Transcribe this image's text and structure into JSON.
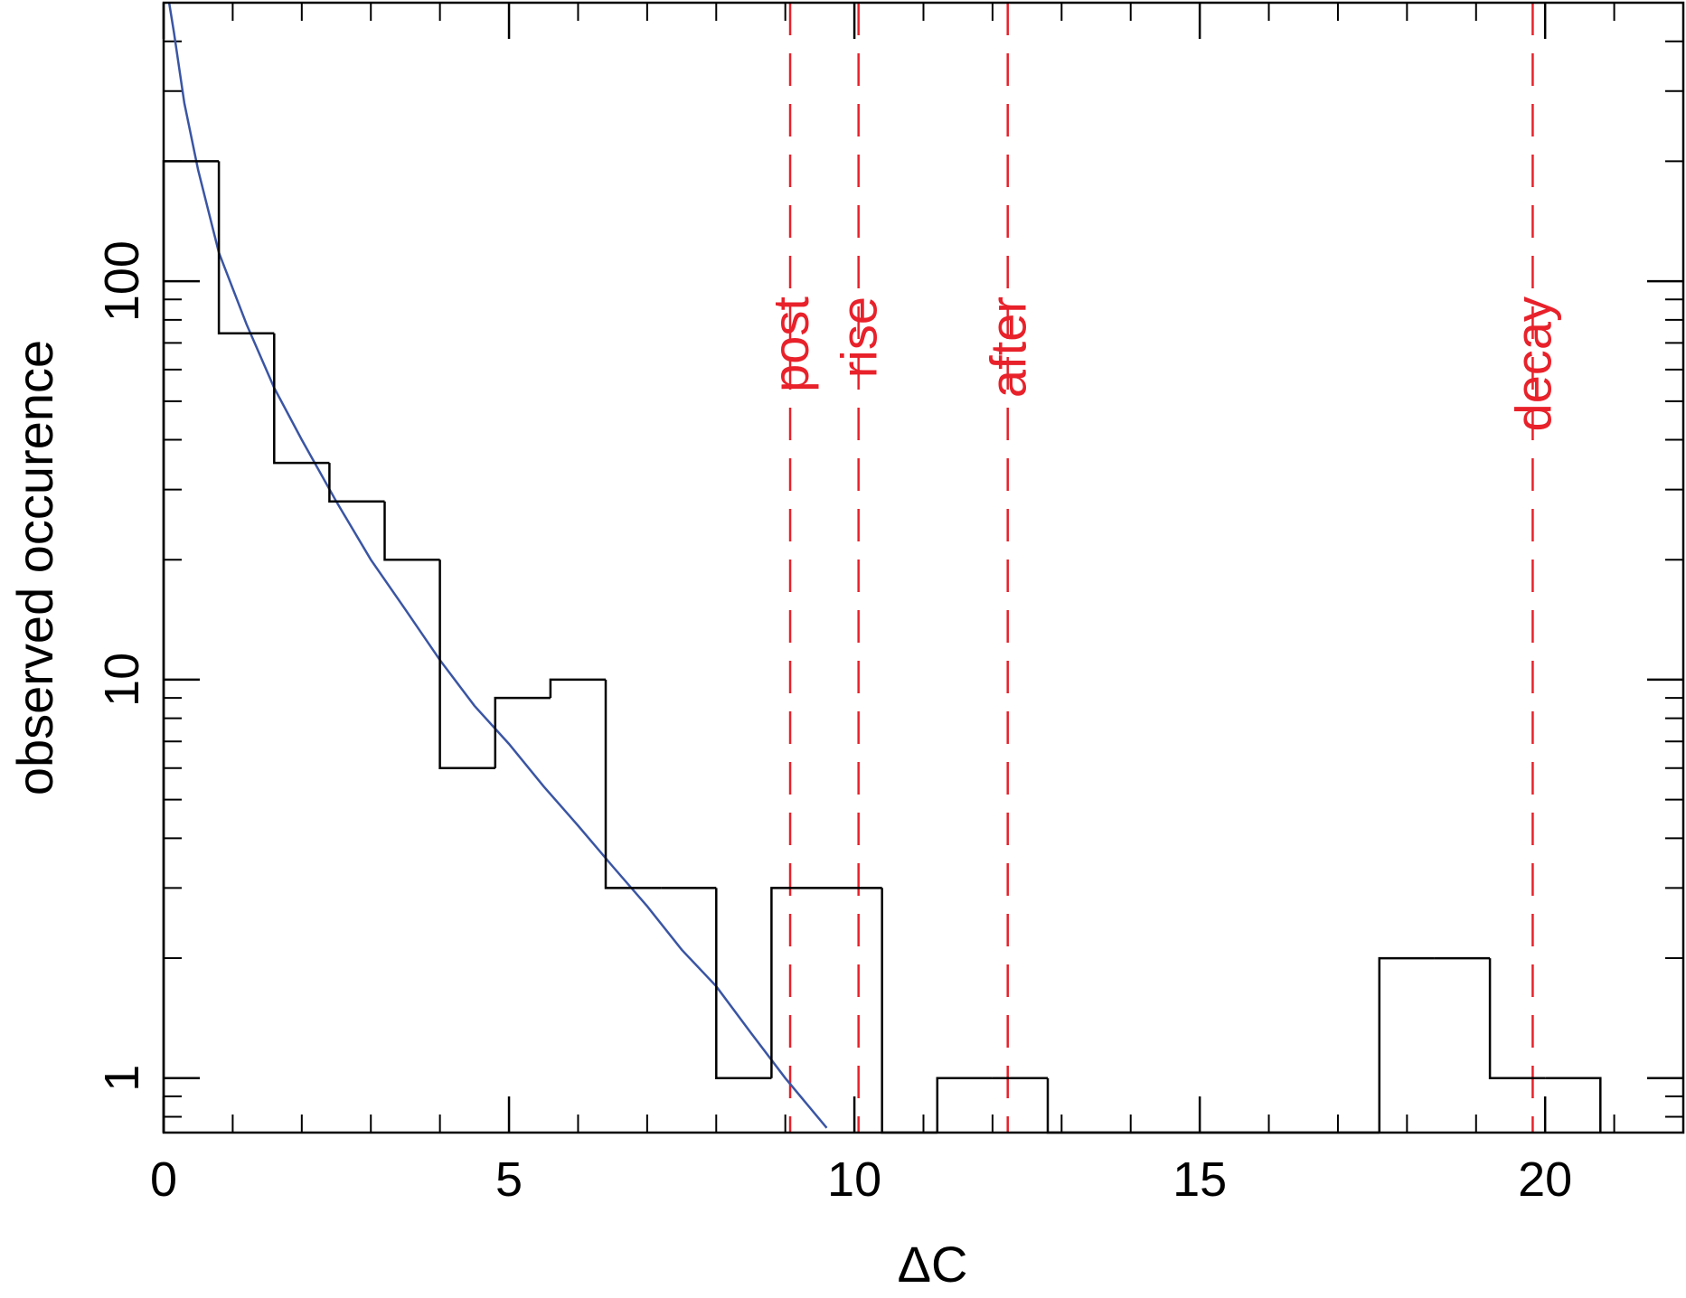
{
  "chart_data": {
    "type": "histogram",
    "title": "",
    "xlabel": "ΔC",
    "ylabel": "observed occurence",
    "xlim": [
      0,
      22
    ],
    "ylim": [
      0.73,
      500
    ],
    "yscale": "log",
    "grid": false,
    "x_ticks": [
      0,
      5,
      10,
      15,
      20
    ],
    "x_tick_labels": [
      "0",
      "5",
      "10",
      "15",
      "20"
    ],
    "y_ticks": [
      1,
      10,
      100
    ],
    "y_tick_labels": [
      "1",
      "10",
      "100"
    ],
    "histogram": {
      "color": "#000000",
      "bin_width": 0.8,
      "bins": [
        {
          "x0": 0.0,
          "x1": 0.8,
          "count": 200
        },
        {
          "x0": 0.8,
          "x1": 1.6,
          "count": 74
        },
        {
          "x0": 1.6,
          "x1": 2.4,
          "count": 35
        },
        {
          "x0": 2.4,
          "x1": 3.2,
          "count": 28
        },
        {
          "x0": 3.2,
          "x1": 4.0,
          "count": 20
        },
        {
          "x0": 4.0,
          "x1": 4.8,
          "count": 6
        },
        {
          "x0": 4.8,
          "x1": 5.6,
          "count": 9
        },
        {
          "x0": 5.6,
          "x1": 6.4,
          "count": 10
        },
        {
          "x0": 6.4,
          "x1": 7.2,
          "count": 3
        },
        {
          "x0": 7.2,
          "x1": 8.0,
          "count": 3
        },
        {
          "x0": 8.0,
          "x1": 8.8,
          "count": 1
        },
        {
          "x0": 8.8,
          "x1": 9.6,
          "count": 3
        },
        {
          "x0": 9.6,
          "x1": 10.4,
          "count": 3
        },
        {
          "x0": 10.4,
          "x1": 11.2,
          "count": 0
        },
        {
          "x0": 11.2,
          "x1": 12.0,
          "count": 1
        },
        {
          "x0": 12.0,
          "x1": 12.8,
          "count": 1
        },
        {
          "x0": 12.8,
          "x1": 17.6,
          "count": 0
        },
        {
          "x0": 17.6,
          "x1": 18.4,
          "count": 2
        },
        {
          "x0": 18.4,
          "x1": 19.2,
          "count": 2
        },
        {
          "x0": 19.2,
          "x1": 20.0,
          "count": 1
        },
        {
          "x0": 20.0,
          "x1": 20.8,
          "count": 1
        }
      ]
    },
    "model_curve": {
      "color": "#3a55a4",
      "x": [
        0.08,
        0.15,
        0.3,
        0.5,
        0.8,
        1.2,
        1.6,
        2.0,
        2.5,
        3.0,
        3.5,
        4.0,
        4.5,
        5.0,
        5.5,
        6.0,
        6.5,
        7.0,
        7.5,
        8.0,
        8.5,
        9.0,
        9.6
      ],
      "y": [
        600,
        420,
        280,
        190,
        118,
        78,
        54,
        40,
        28,
        20,
        15,
        11.2,
        8.6,
        6.9,
        5.4,
        4.3,
        3.4,
        2.7,
        2.1,
        1.7,
        1.3,
        1.0,
        0.75
      ]
    },
    "markers": [
      {
        "label": "post",
        "x": 9.07,
        "color": "#e8212a"
      },
      {
        "label": "rise",
        "x": 10.06,
        "color": "#e8212a"
      },
      {
        "label": "after",
        "x": 12.22,
        "color": "#e8212a"
      },
      {
        "label": "decay",
        "x": 19.82,
        "color": "#e8212a"
      }
    ]
  }
}
